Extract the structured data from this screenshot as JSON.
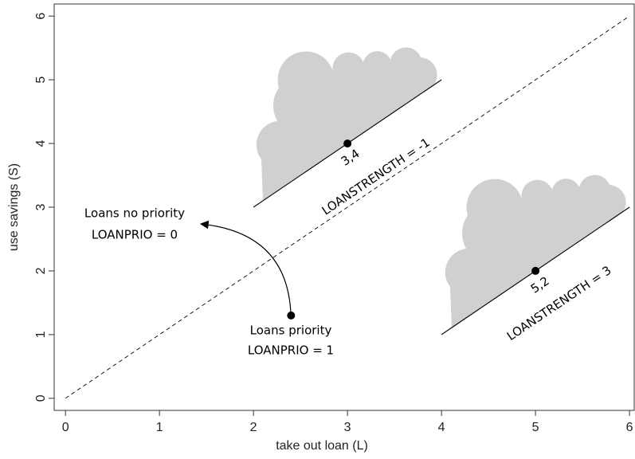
{
  "chart_data": {
    "type": "scatter",
    "x_label": "take out loan (L)",
    "y_label": "use savings (S)",
    "xlim": [
      -0.12,
      6.05
    ],
    "ylim": [
      -0.19,
      6.19
    ],
    "xticks": [
      0,
      1,
      2,
      3,
      4,
      5,
      6
    ],
    "yticks": [
      0,
      1,
      2,
      3,
      4,
      5,
      6
    ],
    "x": [
      3,
      5,
      2.4
    ],
    "values": [
      4,
      2,
      1.3
    ],
    "point_labels": [
      "3,4",
      "5,2",
      null
    ],
    "color": "#000000",
    "lines": [
      {
        "x": [
          2,
          4
        ],
        "values": [
          3,
          5
        ]
      },
      {
        "x": [
          4,
          6
        ],
        "values": [
          1,
          3
        ]
      },
      {
        "x": [
          0,
          6
        ],
        "values": [
          0,
          6
        ],
        "dashed": true
      }
    ],
    "annotations": [
      "LOANSTRENGTH = -1",
      "LOANSTRENGTH = 3",
      "Loans no priority",
      "LOANPRIO = 0",
      "Loans priority",
      "LOANPRIO = 1"
    ]
  }
}
